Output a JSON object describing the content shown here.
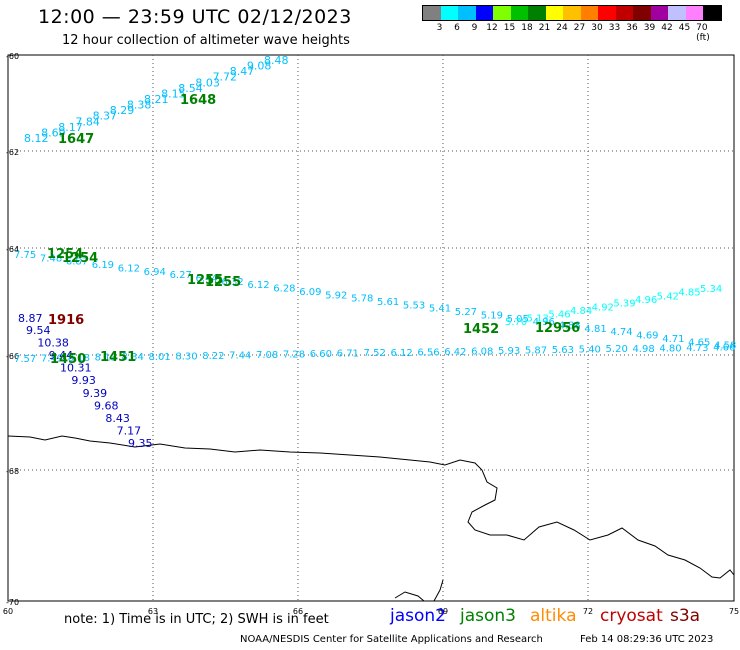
{
  "header": {
    "title": "12:00 — 23:59 UTC 02/12/2023",
    "subtitle": "12 hour collection of altimeter wave heights"
  },
  "legend": {
    "colors": [
      "#808080",
      "#00ffff",
      "#00bfff",
      "#0000ff",
      "#7fff00",
      "#00c000",
      "#008000",
      "#ffff00",
      "#ffc000",
      "#ff8000",
      "#ff0000",
      "#c00000",
      "#800000",
      "#a000a0",
      "#c0c0ff",
      "#ff80ff",
      "#000000"
    ],
    "labels": [
      "3",
      "6",
      "9",
      "12",
      "15",
      "18",
      "21",
      "24",
      "27",
      "30",
      "33",
      "36",
      "39",
      "42",
      "45",
      "70 (ft)"
    ],
    "unit": "(ft)"
  },
  "map": {
    "lon_ticks": [
      "60",
      "63",
      "66",
      "69",
      "72",
      "75"
    ],
    "lat_ticks": [
      "-60",
      "-62",
      "-64",
      "-66",
      "-68",
      "-70"
    ],
    "coast_color": "#000000"
  },
  "tracks": [
    {
      "color": "#00bfff",
      "labels": [
        "8.12",
        "8.69",
        "8.17",
        "7.84",
        "8.37",
        "8.29",
        "8.38",
        "8.21",
        "8.15",
        "8.54",
        "8.03",
        "7.72",
        "8.47",
        "9.08",
        "8.48"
      ]
    },
    {
      "color": "#00bfff",
      "labels": [
        "7.75",
        "7.48",
        "6.87",
        "6.19",
        "6.12",
        "6.94",
        "6.27",
        "6.44",
        "6.32",
        "6.12",
        "6.28",
        "6.09",
        "5.92",
        "5.78",
        "5.61",
        "5.53",
        "5.41",
        "5.27",
        "5.19",
        "5.05",
        "4.96",
        "4.88",
        "4.81",
        "4.74",
        "4.69",
        "4.71",
        "4.65",
        "4.58",
        "4.63"
      ]
    },
    {
      "color": "#00ffff",
      "labels": [
        "5.70",
        "5.13",
        "5.46",
        "4.84",
        "4.92",
        "5.39",
        "4.96",
        "5.42",
        "4.85",
        "5.34"
      ]
    },
    {
      "color": "#00bfff",
      "labels": [
        "7.57",
        "7.49",
        "8.18",
        "8.13",
        "8.34",
        "8.01",
        "8.30",
        "8.22",
        "7.44",
        "7.08",
        "7.28",
        "6.60",
        "6.71",
        "7.52",
        "6.12",
        "6.56",
        "6.42",
        "6.08",
        "5.93",
        "5.87",
        "5.63",
        "5.40",
        "5.20",
        "4.98",
        "4.80",
        "4.73",
        "4.66",
        "4.40"
      ]
    },
    {
      "color": "#0000c0",
      "labels": [
        "9.54",
        "10.38",
        "9.44",
        "10.31",
        "9.93",
        "9.39",
        "9.68",
        "8.43",
        "7.17",
        "9.35"
      ]
    }
  ],
  "pass_labels": [
    {
      "text": "1647",
      "color": "#008000"
    },
    {
      "text": "1648",
      "color": "#008000"
    },
    {
      "text": "1254",
      "color": "#008000"
    },
    {
      "text": "1255",
      "color": "#008000"
    },
    {
      "text": "1452",
      "color": "#008000"
    },
    {
      "text": "1451",
      "color": "#008000"
    },
    {
      "text": "1450",
      "color": "#008000"
    },
    {
      "text": "1916",
      "color": "#800000"
    },
    {
      "text": "12956",
      "color": "#008000"
    }
  ],
  "extra_values": [
    {
      "text": "8.87",
      "color": "#0000c0"
    }
  ],
  "footer": {
    "note": "note:  1) Time is in UTC; 2) SWH is in feet",
    "satellites": [
      {
        "name": "jason2",
        "color": "#0000ff"
      },
      {
        "name": "jason3",
        "color": "#008000"
      },
      {
        "name": "altika",
        "color": "#ff8c00"
      },
      {
        "name": "cryosat",
        "color": "#c00000"
      },
      {
        "name": "s3a",
        "color": "#800000"
      }
    ],
    "credit": "NOAA/NESDIS Center for Satellite Applications and Research",
    "date": "Feb 14 08:29:36 UTC 2023"
  }
}
